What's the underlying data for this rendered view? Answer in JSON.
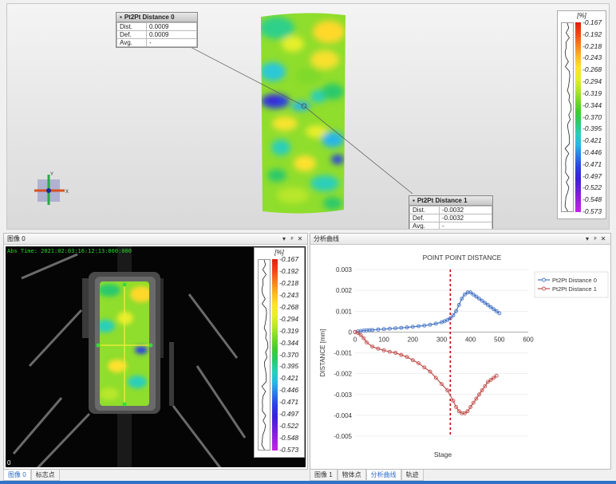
{
  "colors": {
    "accent": "#2e73c7",
    "series0": "#4472c4",
    "series1": "#c0504d",
    "marker_line": "#c00000",
    "timestamp": "#29d829"
  },
  "colormap": [
    "#e02010",
    "#f24416",
    "#f57e1f",
    "#fbb426",
    "#ffe12e",
    "#e8ee2c",
    "#b8e72a",
    "#7ad82a",
    "#3fcc2d",
    "#2cc96c",
    "#29cfb9",
    "#28b6e8",
    "#2b78e6",
    "#2b3fe0",
    "#3b20d8",
    "#6a20d8",
    "#9b21dc",
    "#c523e2"
  ],
  "legend": {
    "title": "[%]",
    "ticks": [
      "-0.167",
      "-0.192",
      "-0.218",
      "-0.243",
      "-0.268",
      "-0.294",
      "-0.319",
      "-0.344",
      "-0.370",
      "-0.395",
      "-0.421",
      "-0.446",
      "-0.471",
      "-0.497",
      "-0.522",
      "-0.548",
      "-0.573"
    ]
  },
  "view3d": {
    "box0": {
      "title": "Pt2Pt Distance 0",
      "rows": [
        {
          "k": "Dist.",
          "v": "0.0009"
        },
        {
          "k": "Def.",
          "v": "0.0009"
        },
        {
          "k": "Avg.",
          "v": "-"
        }
      ]
    },
    "box1": {
      "title": "Pt2Pt Distance 1",
      "rows": [
        {
          "k": "Dist.",
          "v": "-0.0032"
        },
        {
          "k": "Def.",
          "v": "-0.0032"
        },
        {
          "k": "Avg.",
          "v": "-"
        }
      ]
    },
    "axis": {
      "y": "Y",
      "x": "X"
    }
  },
  "image_panel": {
    "title": "图像 0",
    "buttons": {
      "dropdown": "▾",
      "pin": "ᵖ",
      "close": "✕"
    },
    "timestamp": "Abs Time: 2021:02:03:16:12:13:000:000",
    "zero": "0"
  },
  "chart_panel": {
    "title": "分析曲线",
    "buttons": {
      "dropdown": "▾",
      "pin": "ᵖ",
      "close": "✕"
    }
  },
  "tabs_left": [
    "图像 0",
    "标志点"
  ],
  "tabs_right": [
    "图像 1",
    "物体点",
    "分析曲线",
    "轨迹"
  ],
  "chart_data": {
    "type": "line",
    "title": "POINT POINT DISTANCE",
    "xlabel": "Stage",
    "ylabel": "DISTANCE [mm]",
    "xlim": [
      0,
      600
    ],
    "ylim": [
      -0.005,
      0.003
    ],
    "xticks": [
      "0",
      "100",
      "200",
      "300",
      "400",
      "500",
      "600"
    ],
    "yticks": [
      "0.003",
      "0.002",
      "0.001",
      "0",
      "-0.001",
      "-0.002",
      "-0.003",
      "-0.004",
      "-0.005"
    ],
    "grid": true,
    "legend_position": "top-right",
    "vline_x": 330,
    "series": [
      {
        "name": "Pt2Pt Distance 0",
        "color": "#4472c4",
        "x": [
          0,
          10,
          20,
          30,
          40,
          50,
          60,
          80,
          100,
          120,
          140,
          160,
          180,
          200,
          220,
          240,
          260,
          280,
          300,
          310,
          320,
          330,
          340,
          350,
          360,
          370,
          380,
          390,
          400,
          410,
          420,
          430,
          440,
          450,
          460,
          470,
          480,
          490,
          500
        ],
        "y": [
          0,
          3e-05,
          5e-05,
          7e-05,
          8e-05,
          9e-05,
          0.0001,
          0.00012,
          0.00014,
          0.00016,
          0.00018,
          0.0002,
          0.00022,
          0.00025,
          0.00028,
          0.00031,
          0.00035,
          0.0004,
          0.00047,
          0.00052,
          0.00058,
          0.00066,
          0.0008,
          0.001,
          0.0013,
          0.0016,
          0.0018,
          0.0019,
          0.0019,
          0.0018,
          0.0017,
          0.0016,
          0.0015,
          0.0014,
          0.0013,
          0.0012,
          0.0011,
          0.001,
          0.0009
        ]
      },
      {
        "name": "Pt2Pt Distance 1",
        "color": "#c0504d",
        "x": [
          0,
          10,
          20,
          30,
          40,
          60,
          80,
          100,
          120,
          140,
          160,
          180,
          200,
          220,
          240,
          260,
          280,
          300,
          320,
          340,
          350,
          360,
          370,
          380,
          390,
          400,
          410,
          420,
          430,
          440,
          450,
          460,
          470,
          480,
          490
        ],
        "y": [
          0,
          -5e-05,
          -0.00015,
          -0.0003,
          -0.0005,
          -0.0007,
          -0.0008,
          -0.00088,
          -0.00095,
          -0.001,
          -0.0011,
          -0.0012,
          -0.00135,
          -0.0015,
          -0.0017,
          -0.0019,
          -0.0022,
          -0.0025,
          -0.0028,
          -0.0033,
          -0.0036,
          -0.0038,
          -0.0039,
          -0.0039,
          -0.0038,
          -0.0036,
          -0.0034,
          -0.0032,
          -0.003,
          -0.0028,
          -0.0026,
          -0.0024,
          -0.0023,
          -0.0022,
          -0.0021
        ]
      }
    ]
  }
}
